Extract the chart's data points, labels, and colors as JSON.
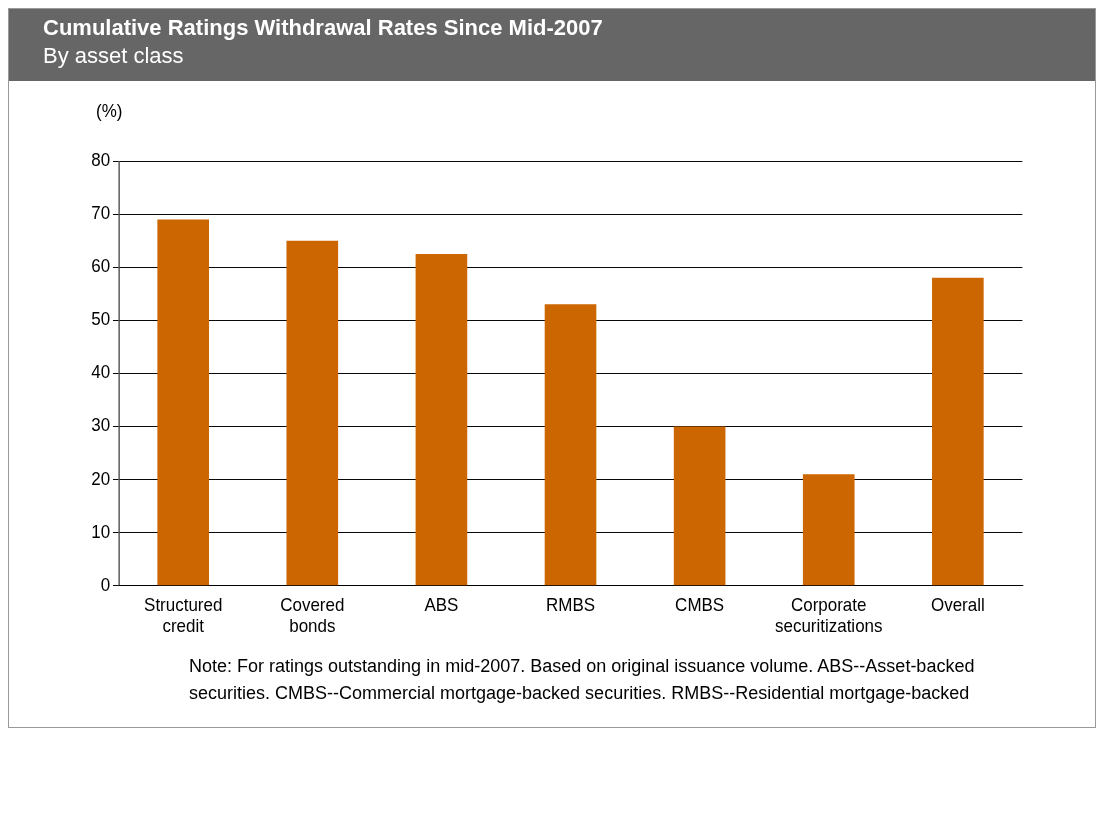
{
  "chart_data": {
    "type": "bar",
    "title": "Cumulative Ratings Withdrawal Rates Since Mid-2007",
    "subtitle": "By asset class",
    "ylabel": "(%)",
    "categories": [
      "Structured credit",
      "Covered bonds",
      "ABS",
      "RMBS",
      "CMBS",
      "Corporate securitizations",
      "Overall"
    ],
    "values": [
      69,
      65,
      62.5,
      53,
      30,
      21,
      58
    ],
    "color": "#cc6600",
    "ylim": [
      0,
      80
    ],
    "yticks": [
      0,
      10,
      20,
      30,
      40,
      50,
      60,
      70,
      80
    ],
    "grid": "y",
    "annotations": [
      "Note: For ratings outstanding in mid-2007. Based on original issuance volume. ABS--Asset-backed securities. CMBS--Commercial mortgage-backed securities. RMBS--Residential mortgage-backed"
    ]
  }
}
